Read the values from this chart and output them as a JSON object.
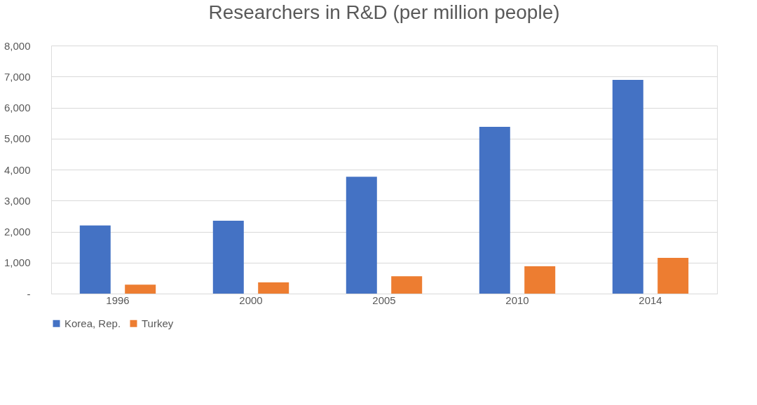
{
  "chart_data": {
    "type": "bar",
    "title": "Researchers in R&D (per million people)",
    "categories": [
      "1996",
      "2000",
      "2005",
      "2010",
      "2014"
    ],
    "series": [
      {
        "name": "Korea, Rep.",
        "color": "#4472c4",
        "values": [
          2200,
          2350,
          3770,
          5380,
          6890
        ]
      },
      {
        "name": "Turkey",
        "color": "#ed7d31",
        "values": [
          290,
          360,
          560,
          880,
          1150
        ]
      }
    ],
    "ylim": [
      0,
      8000
    ],
    "yticks": [
      {
        "value": 0,
        "label": "-"
      },
      {
        "value": 1000,
        "label": "1,000"
      },
      {
        "value": 2000,
        "label": "2,000"
      },
      {
        "value": 3000,
        "label": "3,000"
      },
      {
        "value": 4000,
        "label": "4,000"
      },
      {
        "value": 5000,
        "label": "5,000"
      },
      {
        "value": 6000,
        "label": "6,000"
      },
      {
        "value": 7000,
        "label": "7,000"
      },
      {
        "value": 8000,
        "label": "8,000"
      }
    ],
    "grid": "y",
    "legend": "bottom"
  }
}
